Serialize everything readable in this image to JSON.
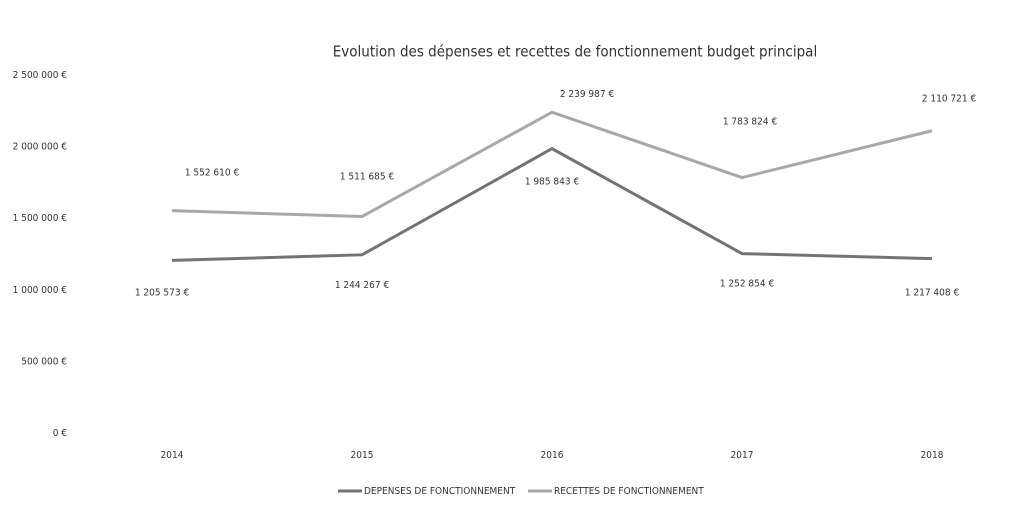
{
  "chart_data": {
    "type": "line",
    "title": "Evolution des dépenses et recettes de fonctionnement budget principal",
    "categories": [
      "2014",
      "2015",
      "2016",
      "2017",
      "2018"
    ],
    "series": [
      {
        "name": "DEPENSES DE FONCTIONNEMENT",
        "color": "#737373",
        "values": [
          1205573,
          1244267,
          1985843,
          1252854,
          1217408
        ],
        "value_labels": [
          "1 205 573 €",
          "1 244 267 €",
          "1 985 843 €",
          "1 252 854 €",
          "1 217 408 €"
        ]
      },
      {
        "name": "RECETTES DE FONCTIONNEMENT",
        "color": "#a8a8a8",
        "values": [
          1552610,
          1511685,
          2239987,
          1783824,
          2110721
        ],
        "value_labels": [
          "1 552 610 €",
          "1 511 685 €",
          "2 239 987 €",
          "1 783 824 €",
          "2 110 721 €"
        ]
      }
    ],
    "ylim": [
      0,
      2500000
    ],
    "yticks": [
      {
        "value": 0,
        "label": "0 €"
      },
      {
        "value": 500000,
        "label": "500 000 €"
      },
      {
        "value": 1000000,
        "label": "1 000 000 €"
      },
      {
        "value": 1500000,
        "label": "1 500 000 €"
      },
      {
        "value": 2000000,
        "label": "2 000 000 €"
      },
      {
        "value": 2500000,
        "label": "2 500 000 €"
      }
    ],
    "legend": "bottom"
  }
}
